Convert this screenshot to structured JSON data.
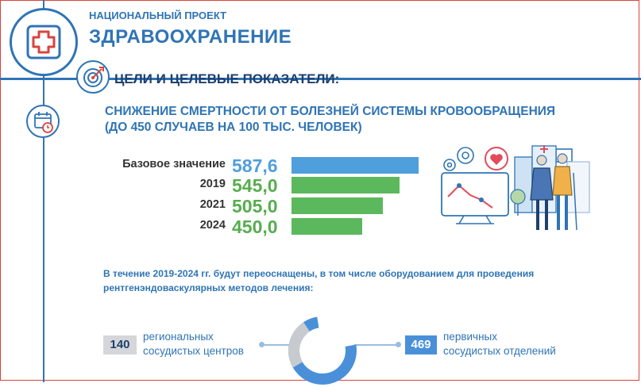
{
  "header": {
    "project_label": "НАЦИОНАЛЬНЫЙ ПРОЕКТ",
    "project_name": "ЗДРАВООХРАНЕНИЕ"
  },
  "section": {
    "goals_title": "ЦЕЛИ И ЦЕЛЕВЫЕ ПОКАЗАТЕЛИ:",
    "goal_line1": "СНИЖЕНИЕ СМЕРТНОСТИ ОТ БОЛЕЗНЕЙ СИСТЕМЫ КРОВООБРАЩЕНИЯ",
    "goal_line2": "(ДО 450 СЛУЧАЕВ НА 100 ТЫС. ЧЕЛОВЕК)"
  },
  "rows": [
    {
      "label": "Базовое значение",
      "value": "587,6",
      "num": 587.6
    },
    {
      "label": "2019",
      "value": "545,0",
      "num": 545.0
    },
    {
      "label": "2021",
      "value": "505,0",
      "num": 505.0
    },
    {
      "label": "2024",
      "value": "450,0",
      "num": 450.0
    }
  ],
  "colors": {
    "primary": "#2f74b5",
    "base_bar": "#4f9fdc",
    "target_bar": "#5cb85c",
    "target_text": "#57ad4e",
    "badge_grey": "#d4d6d9",
    "badge_blue": "#4a90d9"
  },
  "note": {
    "line1": "В течение 2019-2024 гг. будут переоснащены, в том числе оборудованием для проведения",
    "line2": "рентгенэндоваскулярных методов лечения:"
  },
  "stats": {
    "left_value": "140",
    "left_line1": "региональных",
    "left_line2": "сосудистых центров",
    "right_value": "469",
    "right_line1": "первичных",
    "right_line2": "сосудистых отделений"
  },
  "icons": {
    "header": "medical-cross-icon",
    "goals": "target-icon",
    "calendar": "calendar-clock-icon",
    "illustration": "healthcare-illustration"
  }
}
